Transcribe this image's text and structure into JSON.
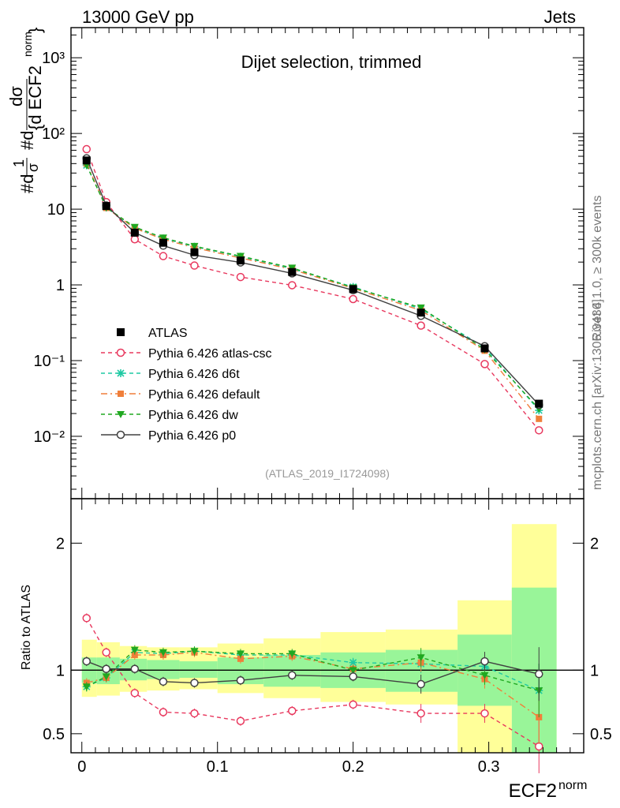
{
  "header": {
    "energy": "13000 GeV pp",
    "category": "Jets",
    "selection": "Dijet selection, trimmed",
    "analysis_id": "(ATLAS_2019_I1724098)",
    "rivet_label": "Rivet 4.1.0, ≥ 300k events",
    "source_label": "mcplots.cern.ch [arXiv:1306.3436]"
  },
  "colors": {
    "atlas": "#000000",
    "atlas_csc": "#e8385e",
    "d6t": "#1fc9a3",
    "default": "#f07f3a",
    "dw": "#20a820",
    "p0": "#404040",
    "band_inner": "#99f599",
    "band_outer": "#ffff99"
  },
  "chart_data": [
    {
      "type": "line",
      "name": "main",
      "yscale": "log",
      "ylim": [
        0.0015,
        2500
      ],
      "xlim": [
        -0.008,
        0.37
      ],
      "ylabel": "#d1/σ #d dσ / {d ECF2 norm}",
      "ytick_labels": [
        "10⁻²",
        "10⁻¹",
        "1",
        "10",
        "10²",
        "10³"
      ],
      "x": [
        0.0035,
        0.018,
        0.039,
        0.06,
        0.083,
        0.117,
        0.155,
        0.2,
        0.25,
        0.297,
        0.337
      ],
      "legend": [
        "ATLAS",
        "Pythia 6.426 atlas-csc",
        "Pythia 6.426 d6t",
        "Pythia 6.426 default",
        "Pythia 6.426 dw",
        "Pythia 6.426 p0"
      ],
      "series": [
        {
          "name": "ATLAS",
          "key": "atlas",
          "values": [
            44,
            11,
            4.9,
            3.6,
            2.7,
            2.1,
            1.48,
            0.88,
            0.43,
            0.145,
            0.027
          ]
        },
        {
          "name": "Pythia 6.426 atlas-csc",
          "key": "atlas_csc",
          "values": [
            62,
            12.4,
            4.0,
            2.4,
            1.8,
            1.27,
            0.99,
            0.65,
            0.29,
            0.09,
            0.012
          ]
        },
        {
          "name": "Pythia 6.426 d6t",
          "key": "d6t",
          "values": [
            38,
            10.5,
            5.6,
            4.1,
            3.2,
            2.36,
            1.63,
            0.94,
            0.48,
            0.15,
            0.022
          ]
        },
        {
          "name": "Pythia 6.426 default",
          "key": "default",
          "values": [
            40,
            10.4,
            5.6,
            4.0,
            3.1,
            2.27,
            1.6,
            0.9,
            0.46,
            0.135,
            0.017
          ]
        },
        {
          "name": "Pythia 6.426 dw",
          "key": "dw",
          "values": [
            38,
            10.5,
            5.8,
            4.2,
            3.25,
            2.4,
            1.68,
            0.92,
            0.5,
            0.14,
            0.023
          ]
        },
        {
          "name": "Pythia 6.426 p0",
          "key": "p0",
          "values": [
            47,
            11.2,
            4.9,
            3.3,
            2.47,
            1.98,
            1.42,
            0.85,
            0.39,
            0.155,
            0.026
          ]
        }
      ]
    },
    {
      "type": "line",
      "name": "ratio",
      "ylim": [
        0.35,
        2.35
      ],
      "xlim": [
        -0.008,
        0.37
      ],
      "ylabel": "Ratio to ATLAS",
      "xlabel": "ECF2",
      "xlabel_sup": "norm",
      "ytick_labels": [
        "0.5",
        "1",
        "2"
      ],
      "xtick_labels": [
        "0",
        "0.1",
        "0.2",
        "0.3"
      ],
      "x": [
        0.0035,
        0.018,
        0.039,
        0.06,
        0.083,
        0.117,
        0.155,
        0.2,
        0.25,
        0.297,
        0.337
      ],
      "bin_edges": [
        0,
        0.011,
        0.028,
        0.048,
        0.072,
        0.1,
        0.134,
        0.176,
        0.224,
        0.277,
        0.317,
        0.35
      ],
      "band_inner": [
        [
          0.9,
          1.1
        ],
        [
          0.89,
          1.1
        ],
        [
          0.92,
          1.09
        ],
        [
          0.93,
          1.08
        ],
        [
          0.94,
          1.07
        ],
        [
          0.89,
          1.1
        ],
        [
          0.87,
          1.12
        ],
        [
          0.86,
          1.14
        ],
        [
          0.83,
          1.16
        ],
        [
          0.72,
          1.28
        ],
        [
          0.35,
          1.65
        ]
      ],
      "band_outer": [
        [
          0.79,
          1.24
        ],
        [
          0.8,
          1.22
        ],
        [
          0.83,
          1.19
        ],
        [
          0.84,
          1.18
        ],
        [
          0.85,
          1.18
        ],
        [
          0.82,
          1.21
        ],
        [
          0.78,
          1.25
        ],
        [
          0.75,
          1.3
        ],
        [
          0.73,
          1.32
        ],
        [
          0.35,
          1.55
        ],
        [
          0.35,
          2.15
        ]
      ],
      "series": [
        {
          "name": "Pythia 6.426 atlas-csc",
          "key": "atlas_csc",
          "values": [
            1.41,
            1.14,
            0.82,
            0.67,
            0.66,
            0.6,
            0.68,
            0.73,
            0.66,
            0.66,
            0.4
          ]
        },
        {
          "name": "Pythia 6.426 d6t",
          "key": "d6t",
          "values": [
            0.87,
            0.94,
            1.14,
            1.13,
            1.15,
            1.12,
            1.12,
            1.06,
            1.05,
            1.03,
            0.84
          ]
        },
        {
          "name": "Pythia 6.426 default",
          "key": "default",
          "values": [
            0.9,
            0.94,
            1.12,
            1.12,
            1.14,
            1.09,
            1.11,
            1.01,
            1.06,
            0.93,
            0.63
          ]
        },
        {
          "name": "Pythia 6.426 dw",
          "key": "dw",
          "values": [
            0.87,
            0.95,
            1.16,
            1.14,
            1.15,
            1.13,
            1.13,
            1.0,
            1.1,
            0.96,
            0.84
          ]
        },
        {
          "name": "Pythia 6.426 p0",
          "key": "p0",
          "values": [
            1.07,
            1.01,
            1.01,
            0.91,
            0.9,
            0.92,
            0.96,
            0.95,
            0.89,
            1.07,
            0.97
          ]
        }
      ]
    }
  ]
}
